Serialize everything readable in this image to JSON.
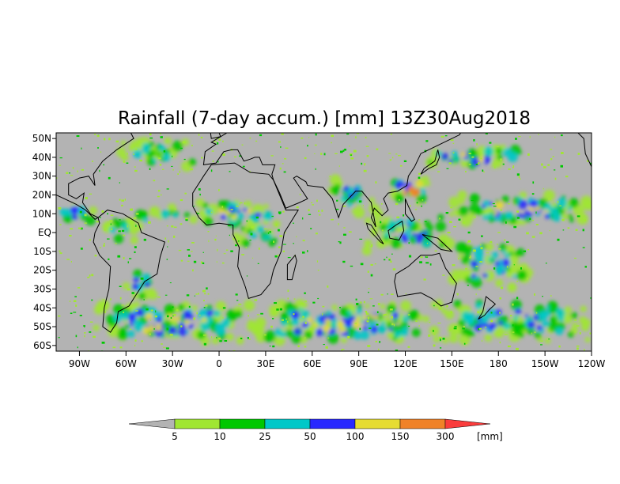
{
  "title": "Rainfall (7-day accum.) [mm] 13Z30Aug2018",
  "map": {
    "projection": "equirectangular",
    "lon_range": [
      -105,
      240
    ],
    "lat_range": [
      -63,
      53
    ],
    "background_color": "#b3b3b3",
    "coastline_color": "#000000",
    "lat_ticks": [
      {
        "label": "50N",
        "lat": 50
      },
      {
        "label": "40N",
        "lat": 40
      },
      {
        "label": "30N",
        "lat": 30
      },
      {
        "label": "20N",
        "lat": 20
      },
      {
        "label": "10N",
        "lat": 10
      },
      {
        "label": "EQ",
        "lat": 0
      },
      {
        "label": "10S",
        "lat": -10
      },
      {
        "label": "20S",
        "lat": -20
      },
      {
        "label": "30S",
        "lat": -30
      },
      {
        "label": "40S",
        "lat": -40
      },
      {
        "label": "50S",
        "lat": -50
      },
      {
        "label": "60S",
        "lat": -60
      }
    ],
    "lon_ticks": [
      {
        "label": "90W",
        "lon": -90
      },
      {
        "label": "60W",
        "lon": -60
      },
      {
        "label": "30W",
        "lon": -30
      },
      {
        "label": "0",
        "lon": 0
      },
      {
        "label": "30E",
        "lon": 30
      },
      {
        "label": "60E",
        "lon": 60
      },
      {
        "label": "90E",
        "lon": 90
      },
      {
        "label": "120E",
        "lon": 120
      },
      {
        "label": "150E",
        "lon": 150
      },
      {
        "label": "180",
        "lon": 180
      },
      {
        "label": "150W",
        "lon": 210
      },
      {
        "label": "120W",
        "lon": 240
      }
    ],
    "rain_bands": [
      {
        "name": "itcz-atlantic",
        "lon": [
          -60,
          -15
        ],
        "lat": [
          4,
          14
        ],
        "level": 2
      },
      {
        "name": "itcz-east-pacific",
        "lon": [
          -105,
          -80
        ],
        "lat": [
          5,
          15
        ],
        "level": 3
      },
      {
        "name": "west-africa-monsoon",
        "lon": [
          -17,
          40
        ],
        "lat": [
          4,
          16
        ],
        "level": 4
      },
      {
        "name": "central-africa",
        "lon": [
          10,
          40
        ],
        "lat": [
          -8,
          6
        ],
        "level": 2
      },
      {
        "name": "amazon",
        "lon": [
          -75,
          -48
        ],
        "lat": [
          -5,
          8
        ],
        "level": 2
      },
      {
        "name": "south-asia-monsoon",
        "lon": [
          70,
          100
        ],
        "lat": [
          10,
          28
        ],
        "level": 3
      },
      {
        "name": "maritime-continent",
        "lon": [
          95,
          150
        ],
        "lat": [
          -10,
          10
        ],
        "level": 3
      },
      {
        "name": "west-pacific-typhoon",
        "lon": [
          112,
          135
        ],
        "lat": [
          15,
          30
        ],
        "level": 5
      },
      {
        "name": "north-pacific-storm-track",
        "lon": [
          130,
          200
        ],
        "lat": [
          35,
          45
        ],
        "level": 4
      },
      {
        "name": "central-pacific-itcz",
        "lon": [
          150,
          240
        ],
        "lat": [
          5,
          20
        ],
        "level": 4
      },
      {
        "name": "spcz",
        "lon": [
          150,
          200
        ],
        "lat": [
          -30,
          -5
        ],
        "level": 3
      },
      {
        "name": "north-atlantic-storm-track",
        "lon": [
          -70,
          -10
        ],
        "lat": [
          35,
          50
        ],
        "level": 2
      },
      {
        "name": "southern-ocean-atlantic",
        "lon": [
          -80,
          20
        ],
        "lat": [
          -58,
          -38
        ],
        "level": 4
      },
      {
        "name": "southern-ocean-indian",
        "lon": [
          20,
          140
        ],
        "lat": [
          -58,
          -38
        ],
        "level": 4
      },
      {
        "name": "southern-ocean-pacific",
        "lon": [
          140,
          240
        ],
        "lat": [
          -58,
          -35
        ],
        "level": 3
      },
      {
        "name": "south-brazil",
        "lon": [
          -60,
          -40
        ],
        "lat": [
          -35,
          -20
        ],
        "level": 3
      }
    ]
  },
  "colorbar": {
    "levels": [
      {
        "label": "5",
        "color": "#a0e632"
      },
      {
        "label": "10",
        "color": "#00c800"
      },
      {
        "label": "25",
        "color": "#00c8c8"
      },
      {
        "label": "50",
        "color": "#2828ff"
      },
      {
        "label": "100",
        "color": "#e6dc32"
      },
      {
        "label": "150",
        "color": "#f08228"
      },
      {
        "label": "300",
        "color": "#fa3c3c"
      }
    ],
    "under_color": "#b3b3b3",
    "over_color": "#fa3c3c",
    "segment_colors": [
      "#a0e632",
      "#00c800",
      "#00c8c8",
      "#2828ff",
      "#e6dc32",
      "#f08228"
    ],
    "unit": "[mm]"
  }
}
